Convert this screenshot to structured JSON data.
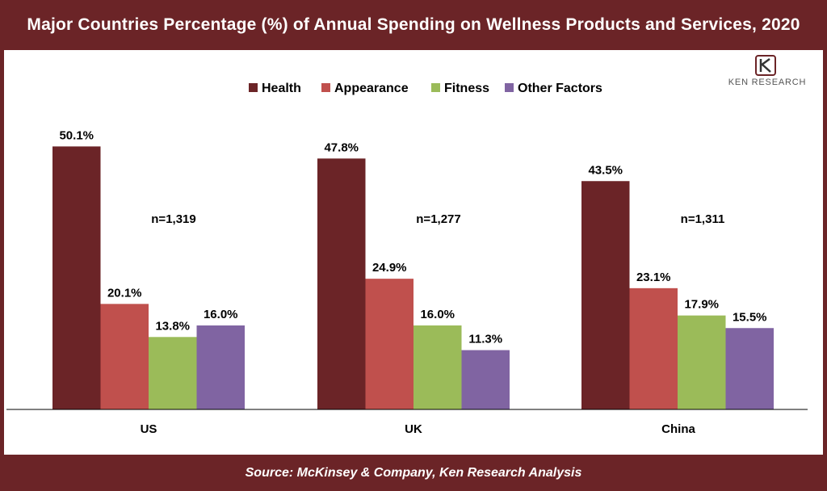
{
  "header": {
    "title": "Major Countries Percentage (%) of Annual Spending on Wellness Products and Services, 2020"
  },
  "footer": {
    "source": "Source: McKinsey & Company, Ken Research Analysis"
  },
  "logo": {
    "text": "KEN RESEARCH",
    "mark": "K"
  },
  "chart_data": {
    "type": "bar",
    "title": "Major Countries Percentage (%) of Annual Spending on Wellness Products and Services, 2020",
    "categories": [
      "US",
      "UK",
      "China"
    ],
    "series": [
      {
        "name": "Health",
        "values": [
          50.1,
          47.8,
          43.5
        ],
        "color": "#6b2427"
      },
      {
        "name": "Appearance",
        "values": [
          20.1,
          24.9,
          23.1
        ],
        "color": "#c0504d"
      },
      {
        "name": "Fitness",
        "values": [
          13.8,
          16.0,
          17.9
        ],
        "color": "#9bbb59"
      },
      {
        "name": "Other Factors",
        "values": [
          16.0,
          11.3,
          15.5
        ],
        "color": "#8064a2"
      }
    ],
    "value_labels": [
      [
        "50.1%",
        "20.1%",
        "13.8%",
        "16.0%"
      ],
      [
        "47.8%",
        "24.9%",
        "16.0%",
        "11.3%"
      ],
      [
        "43.5%",
        "23.1%",
        "17.9%",
        "15.5%"
      ]
    ],
    "annotations": [
      "n=1,319",
      "n=1,277",
      "n=1,311"
    ],
    "legend_position": "top",
    "grid": false,
    "xlabel": "",
    "ylabel": "",
    "ylim": [
      0,
      60
    ]
  }
}
